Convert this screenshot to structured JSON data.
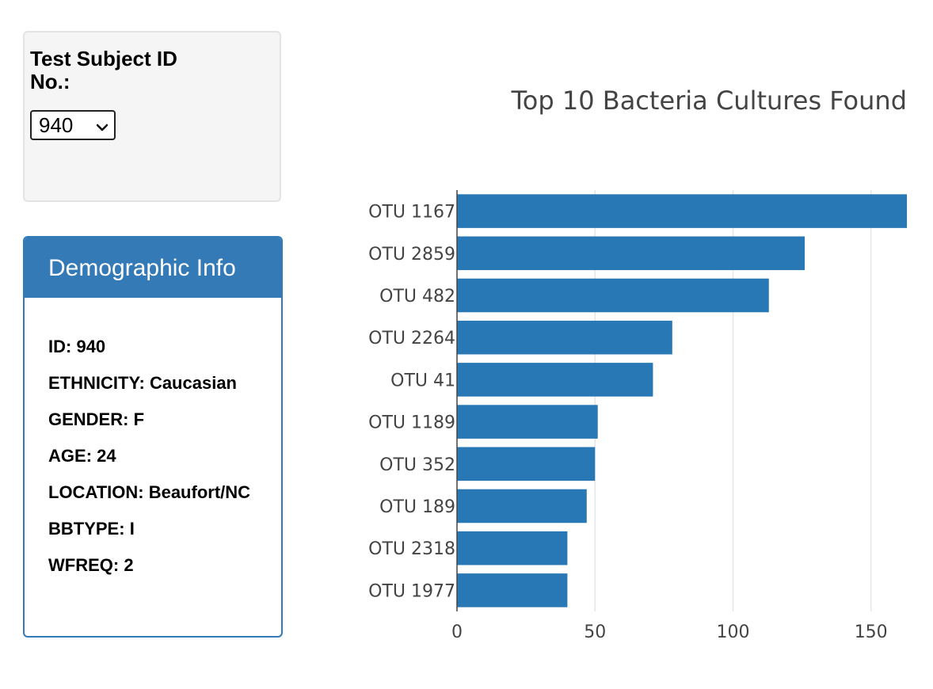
{
  "selector": {
    "label": "Test Subject ID No.:",
    "selected": "940"
  },
  "demographics": {
    "title": "Demographic Info",
    "items": [
      {
        "key": "ID",
        "value": "940"
      },
      {
        "key": "ETHNICITY",
        "value": "Caucasian"
      },
      {
        "key": "GENDER",
        "value": "F"
      },
      {
        "key": "AGE",
        "value": "24"
      },
      {
        "key": "LOCATION",
        "value": "Beaufort/NC"
      },
      {
        "key": "BBTYPE",
        "value": "I"
      },
      {
        "key": "WFREQ",
        "value": "2"
      }
    ]
  },
  "colors": {
    "bar": "#2778b4",
    "panel": "#337ab7"
  },
  "chart_data": {
    "type": "bar",
    "orientation": "horizontal",
    "title": "Top 10 Bacteria Cultures Found",
    "xlabel": "",
    "ylabel": "",
    "categories": [
      "OTU 1167",
      "OTU 2859",
      "OTU 482",
      "OTU 2264",
      "OTU 41",
      "OTU 1189",
      "OTU 352",
      "OTU 189",
      "OTU 2318",
      "OTU 1977"
    ],
    "values": [
      163,
      126,
      113,
      78,
      71,
      51,
      50,
      47,
      40,
      40
    ],
    "xlim": [
      0,
      163
    ],
    "xticks": [
      0,
      50,
      100,
      150
    ],
    "grid": true
  }
}
